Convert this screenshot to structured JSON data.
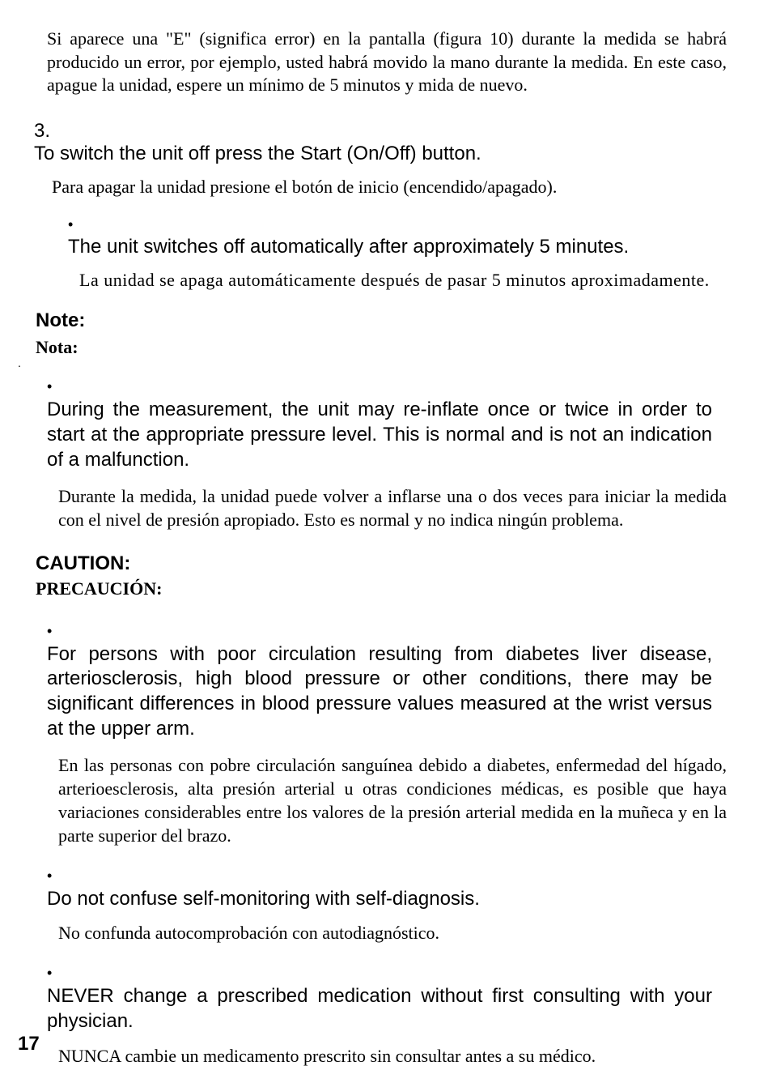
{
  "error_paragraph_es": "Si aparece una \"E\" (significa error) en la pantalla (figura 10) durante la medida se habrá producido un error, por ejemplo, usted habrá movido la mano durante la medida. En este caso, apague la unidad, espere un mínimo de 5 minutos y mida de nuevo.",
  "item3": {
    "number": "3.",
    "text_en": "To switch the unit off press the Start (On/Off) button.",
    "text_es": "Para apagar la unidad presione el botón de inicio (encendido/apagado).",
    "sub_bullet_en": "The unit switches off automatically after approximately 5 minutes.",
    "sub_bullet_es": "La unidad se apaga automáticamente después de pasar 5 minutos aproximadamente."
  },
  "note": {
    "heading_en": "Note:",
    "heading_es": "Nota:",
    "bullet_en": "During the measurement, the unit may re-inflate once or twice in order to start at the appropriate pressure level. This is normal and is not an indication of a malfunction.",
    "bullet_es": "Durante la medida, la unidad puede volver a inflarse una o dos veces para iniciar la medida con el nivel de presión apropiado. Esto es normal y no indica ningún problema."
  },
  "caution": {
    "heading_en": "CAUTION:",
    "heading_es": "PRECAUCIÓN:",
    "bullets": [
      {
        "en": "For persons with poor circulation resulting from diabetes liver disease, arteriosclerosis, high blood pressure or other conditions, there may be significant differences in blood pressure values measured at the wrist versus at the upper arm.",
        "es": "En las personas con pobre circulación sanguínea debido a diabetes, enfermedad del hígado, arterioesclerosis, alta presión arterial u otras condiciones médicas, es posible que haya variaciones considerables entre los valores de la presión arterial medida en la muñeca y en la parte superior del brazo."
      },
      {
        "en": "Do not confuse self-monitoring with self-diagnosis.",
        "es": "No confunda autocomprobación con autodiagnóstico."
      },
      {
        "en": "NEVER change a prescribed medication without first consulting with your physician.",
        "es": "NUNCA cambie un medicamento prescrito sin consultar antes a su médico."
      }
    ]
  },
  "page_number": "17",
  "bullet_char": "•"
}
